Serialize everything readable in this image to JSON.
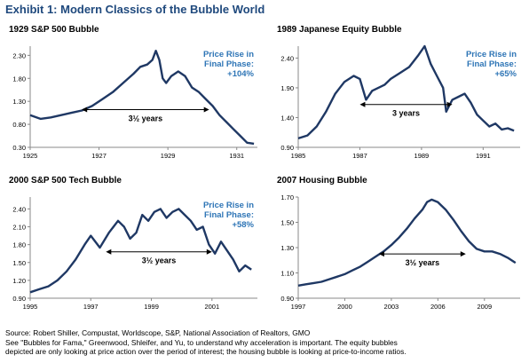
{
  "exhibit_title": "Exhibit 1: Modern Classics of the Bubble World",
  "source": {
    "line1": "Source: Robert Shiller, Compustat, Worldscope, S&P, National Association of Realtors, GMO",
    "line2": "See \"Bubbles for Fama,\" Greenwood, Shleifer, and Yu, to understand why acceleration is important. The equity bubbles",
    "line3": "depicted are only looking at price action over the period of interest; the housing bubble is looking at price-to-income ratios."
  },
  "colors": {
    "line": "#1f3864",
    "title": "#1f497d",
    "annotation": "#2e75b6",
    "axis": "#888888"
  },
  "chart_data": [
    {
      "type": "line",
      "title": "1929 S&P 500 Bubble",
      "xlim": [
        1925,
        1931.6
      ],
      "ylim": [
        0.3,
        2.5
      ],
      "xticks": [
        1925,
        1927,
        1929,
        1931
      ],
      "yticks": [
        0.3,
        0.8,
        1.3,
        1.8,
        2.3
      ],
      "ytick_labels": [
        "0.30",
        "0.80",
        "1.30",
        "1.80",
        "2.30"
      ],
      "annotation": [
        "Price Rise in",
        "Final Phase:",
        "+104%"
      ],
      "span": {
        "x1": 1926.5,
        "x2": 1930.2,
        "y": 1.12,
        "label": "3½ years"
      },
      "x": [
        1925.0,
        1925.3,
        1925.6,
        1925.9,
        1926.2,
        1926.5,
        1926.8,
        1927.1,
        1927.4,
        1927.7,
        1928.0,
        1928.2,
        1928.4,
        1928.55,
        1928.65,
        1928.75,
        1928.85,
        1928.95,
        1929.1,
        1929.3,
        1929.5,
        1929.7,
        1929.9,
        1930.1,
        1930.3,
        1930.5,
        1930.7,
        1930.9,
        1931.1,
        1931.3,
        1931.5
      ],
      "y": [
        1.0,
        0.92,
        0.95,
        1.0,
        1.05,
        1.1,
        1.2,
        1.35,
        1.5,
        1.7,
        1.9,
        2.05,
        2.1,
        2.2,
        2.4,
        2.2,
        1.8,
        1.7,
        1.85,
        1.95,
        1.85,
        1.6,
        1.5,
        1.35,
        1.2,
        1.0,
        0.85,
        0.7,
        0.55,
        0.4,
        0.38
      ]
    },
    {
      "type": "line",
      "title": "1989 Japanese Equity Bubble",
      "xlim": [
        1985,
        1992.2
      ],
      "ylim": [
        0.9,
        2.6
      ],
      "xticks": [
        1985,
        1987,
        1989,
        1991
      ],
      "yticks": [
        0.9,
        1.4,
        1.9,
        2.4
      ],
      "ytick_labels": [
        "0.90",
        "1.40",
        "1.90",
        "2.40"
      ],
      "annotation": [
        "Price Rise in",
        "Final Phase:",
        "+65%"
      ],
      "span": {
        "x1": 1987.0,
        "x2": 1990.0,
        "y": 1.62,
        "label": "3 years"
      },
      "x": [
        1985.0,
        1985.3,
        1985.6,
        1985.9,
        1986.2,
        1986.5,
        1986.8,
        1987.0,
        1987.2,
        1987.4,
        1987.6,
        1987.8,
        1988.0,
        1988.3,
        1988.6,
        1988.9,
        1989.1,
        1989.3,
        1989.5,
        1989.7,
        1989.8,
        1989.9,
        1990.0,
        1990.2,
        1990.4,
        1990.6,
        1990.8,
        1991.0,
        1991.2,
        1991.4,
        1991.6,
        1991.8,
        1992.0
      ],
      "y": [
        1.05,
        1.1,
        1.25,
        1.5,
        1.8,
        2.0,
        2.1,
        2.05,
        1.7,
        1.85,
        1.9,
        1.95,
        2.05,
        2.15,
        2.25,
        2.45,
        2.6,
        2.3,
        2.1,
        1.9,
        1.5,
        1.6,
        1.7,
        1.75,
        1.8,
        1.65,
        1.45,
        1.35,
        1.25,
        1.3,
        1.2,
        1.22,
        1.18
      ]
    },
    {
      "type": "line",
      "title": "2000 S&P 500 Tech Bubble",
      "xlim": [
        1995,
        2002.5
      ],
      "ylim": [
        0.9,
        2.6
      ],
      "xticks": [
        1995,
        1997,
        1999,
        2001
      ],
      "yticks": [
        0.9,
        1.2,
        1.5,
        1.8,
        2.1,
        2.4
      ],
      "ytick_labels": [
        "0.90",
        "1.20",
        "1.50",
        "1.80",
        "2.10",
        "2.40"
      ],
      "annotation": [
        "Price Rise in",
        "Final Phase:",
        "+58%"
      ],
      "span": {
        "x1": 1997.5,
        "x2": 2001.0,
        "y": 1.68,
        "label": "3½ years"
      },
      "x": [
        1995.0,
        1995.3,
        1995.6,
        1995.9,
        1996.2,
        1996.5,
        1996.8,
        1997.0,
        1997.3,
        1997.6,
        1997.9,
        1998.1,
        1998.3,
        1998.5,
        1998.7,
        1998.9,
        1999.1,
        1999.3,
        1999.5,
        1999.7,
        1999.9,
        2000.1,
        2000.3,
        2000.5,
        2000.7,
        2000.9,
        2001.1,
        2001.3,
        2001.5,
        2001.7,
        2001.9,
        2002.1,
        2002.3
      ],
      "y": [
        1.0,
        1.05,
        1.1,
        1.2,
        1.35,
        1.55,
        1.8,
        1.95,
        1.75,
        2.0,
        2.2,
        2.1,
        1.9,
        2.0,
        2.3,
        2.2,
        2.35,
        2.4,
        2.25,
        2.35,
        2.4,
        2.3,
        2.2,
        2.05,
        2.1,
        1.8,
        1.65,
        1.85,
        1.7,
        1.55,
        1.35,
        1.45,
        1.38
      ]
    },
    {
      "type": "line",
      "title": "2007 Housing Bubble",
      "xlim": [
        1997,
        2011.3
      ],
      "ylim": [
        0.9,
        1.7
      ],
      "xticks": [
        1997,
        2000,
        2003,
        2006,
        2009
      ],
      "yticks": [
        0.9,
        1.1,
        1.3,
        1.5,
        1.7
      ],
      "ytick_labels": [
        "0.90",
        "1.10",
        "1.30",
        "1.50",
        "1.70"
      ],
      "annotation": [],
      "span": {
        "x1": 2002.2,
        "x2": 2007.8,
        "y": 1.25,
        "label": "3½ years"
      },
      "x": [
        1997.0,
        1997.5,
        1998.0,
        1998.5,
        1999.0,
        1999.5,
        2000.0,
        2000.5,
        2001.0,
        2001.5,
        2002.0,
        2002.5,
        2003.0,
        2003.5,
        2004.0,
        2004.5,
        2005.0,
        2005.3,
        2005.6,
        2006.0,
        2006.5,
        2007.0,
        2007.5,
        2008.0,
        2008.5,
        2009.0,
        2009.5,
        2010.0,
        2010.5,
        2011.0
      ],
      "y": [
        1.0,
        1.01,
        1.02,
        1.03,
        1.05,
        1.07,
        1.09,
        1.12,
        1.15,
        1.19,
        1.23,
        1.27,
        1.32,
        1.38,
        1.45,
        1.53,
        1.6,
        1.66,
        1.68,
        1.66,
        1.6,
        1.52,
        1.43,
        1.35,
        1.29,
        1.27,
        1.27,
        1.25,
        1.22,
        1.18
      ]
    }
  ]
}
